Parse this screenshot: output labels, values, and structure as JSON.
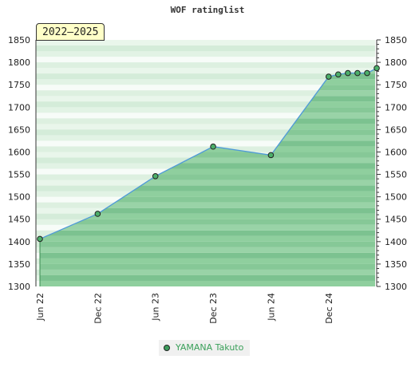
{
  "chart_data": {
    "type": "area",
    "title": "WOF ratinglist",
    "period_label": "2022–2025",
    "ylim": [
      1300,
      1850
    ],
    "y_ticks": [
      1300,
      1350,
      1400,
      1450,
      1500,
      1550,
      1600,
      1650,
      1700,
      1750,
      1800,
      1850
    ],
    "x_ticks": [
      "Jun 22",
      "Dec 22",
      "Jun 23",
      "Dec 23",
      "Jun 24",
      "Dec 24"
    ],
    "xlim": [
      "2022-06",
      "2025-04"
    ],
    "grid": true,
    "legend_position": "bottom",
    "series": [
      {
        "name": "YAMANA Takuto",
        "points": [
          {
            "x": "2022-06",
            "y": 1406
          },
          {
            "x": "2022-12",
            "y": 1462
          },
          {
            "x": "2023-06",
            "y": 1546
          },
          {
            "x": "2023-12",
            "y": 1612
          },
          {
            "x": "2024-06",
            "y": 1593
          },
          {
            "x": "2024-12",
            "y": 1768
          },
          {
            "x": "2025-01",
            "y": 1773
          },
          {
            "x": "2025-02",
            "y": 1776
          },
          {
            "x": "2025-03",
            "y": 1776
          },
          {
            "x": "2025-04",
            "y": 1776
          },
          {
            "x": "2025-05",
            "y": 1787
          }
        ]
      }
    ]
  }
}
